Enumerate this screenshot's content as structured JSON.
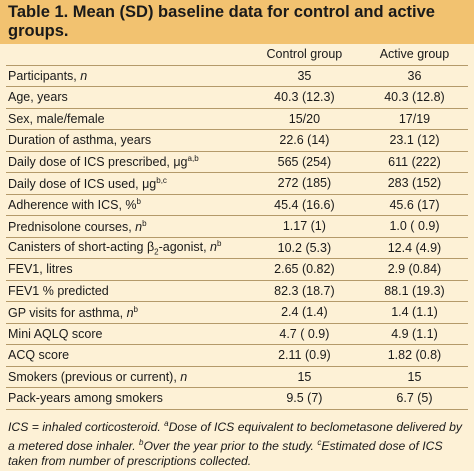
{
  "title": "Table 1. Mean (SD) baseline data for control and active groups.",
  "columns": {
    "control": "Control group",
    "active": "Active group"
  },
  "rows": [
    {
      "label": "Participants, ",
      "ital": "n",
      "sup": "",
      "control": "35",
      "active": "36"
    },
    {
      "label": "Age, years",
      "ital": "",
      "sup": "",
      "control": "40.3 (12.3)",
      "active": "40.3 (12.8)"
    },
    {
      "label": "Sex, male/female",
      "ital": "",
      "sup": "",
      "control": "15/20",
      "active": "17/19"
    },
    {
      "label": "Duration of asthma, years",
      "ital": "",
      "sup": "",
      "control": "22.6 (14)",
      "active": "23.1 (12)"
    },
    {
      "label": "Daily dose of ICS prescribed, μg",
      "ital": "",
      "sup": "a,b",
      "control": "565 (254)",
      "active": "611 (222)"
    },
    {
      "label": "Daily dose of ICS used, μg",
      "ital": "",
      "sup": "b,c",
      "control": "272 (185)",
      "active": "283 (152)"
    },
    {
      "label": "Adherence with ICS, %",
      "ital": "",
      "sup": "b",
      "control": "45.4 (16.6)",
      "active": "45.6 (17)"
    },
    {
      "label": "Prednisolone courses, ",
      "ital": "n",
      "sup": "b",
      "control": "1.17 (1)",
      "active": "1.0 ( 0.9)"
    },
    {
      "label": "Canisters of short-acting β",
      "ital": "",
      "sub": "2",
      "label2": "-agonist, ",
      "ital2": "n",
      "sup": "b",
      "control": "10.2 (5.3)",
      "active": "12.4 (4.9)"
    },
    {
      "label": "FEV1, litres",
      "ital": "",
      "sup": "",
      "control": "2.65 (0.82)",
      "active": "2.9 (0.84)"
    },
    {
      "label": "FEV1 % predicted",
      "ital": "",
      "sup": "",
      "control": "82.3 (18.7)",
      "active": "88.1 (19.3)"
    },
    {
      "label": "GP visits for asthma, ",
      "ital": "n",
      "sup": "b",
      "control": "2.4 (1.4)",
      "active": "1.4 (1.1)"
    },
    {
      "label": "Mini AQLQ score",
      "ital": "",
      "sup": "",
      "control": "4.7 ( 0.9)",
      "active": "4.9 (1.1)"
    },
    {
      "label": "ACQ score",
      "ital": "",
      "sup": "",
      "control": "2.11 (0.9)",
      "active": "1.82 (0.8)"
    },
    {
      "label": "Smokers (previous or current), ",
      "ital": "n",
      "sup": "",
      "control": "15",
      "active": "15"
    },
    {
      "label": "Pack-years among smokers",
      "ital": "",
      "sup": "",
      "control": "9.5 (7)",
      "active": "6.7 (5)"
    }
  ],
  "footnote": {
    "p1": "ICS = inhaled corticosteroid. ",
    "s1": "a",
    "p2": "Dose of ICS equivalent to beclometasone delivered by a metered dose inhaler. ",
    "s2": "b",
    "p3": "Over the year prior to the study. ",
    "s3": "c",
    "p4": "Estimated dose of ICS taken from number of prescriptions collected."
  }
}
